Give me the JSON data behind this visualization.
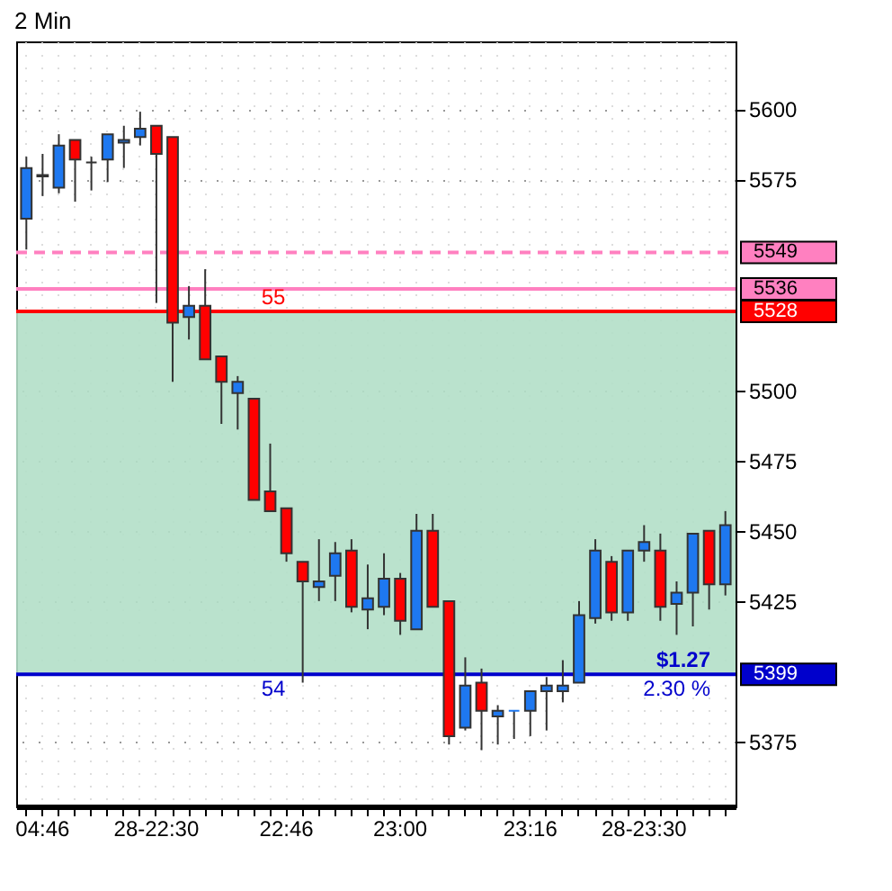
{
  "chart_data": {
    "type": "candlestick",
    "title": "2 Min",
    "categories": [
      null,
      "04:46",
      null,
      null,
      null,
      null,
      null,
      null,
      "28-22:30",
      null,
      null,
      null,
      null,
      null,
      null,
      null,
      "22:46",
      null,
      null,
      null,
      null,
      null,
      null,
      "23:00",
      null,
      null,
      null,
      null,
      null,
      null,
      null,
      "23:16",
      null,
      null,
      null,
      null,
      null,
      null,
      "28-23:30",
      null,
      null,
      null,
      null,
      null
    ],
    "ohlc": [
      [
        5561,
        5583,
        5550,
        5579
      ],
      [
        5576.5,
        5584,
        5569,
        5576
      ],
      [
        5572,
        5591,
        5570,
        5587
      ],
      [
        5589,
        5589,
        5567,
        5582
      ],
      [
        5581,
        5583,
        5571,
        5581
      ],
      [
        5582,
        5591,
        5574,
        5591
      ],
      [
        5588,
        5594,
        5579,
        5589
      ],
      [
        5590,
        5599,
        5587,
        5593
      ],
      [
        5594,
        5594,
        5531,
        5584
      ],
      [
        5590,
        5590,
        5503,
        5524
      ],
      [
        5526,
        5537,
        5518,
        5530
      ],
      [
        5530,
        5543,
        5511,
        5511
      ],
      [
        5512,
        5512,
        5488,
        5503
      ],
      [
        5499,
        5505,
        5486,
        5503
      ],
      [
        5497,
        5497,
        5461,
        5461
      ],
      [
        5464,
        5481,
        5457,
        5457
      ],
      [
        5458,
        5458,
        5439,
        5442
      ],
      [
        5439,
        5439,
        5396,
        5432
      ],
      [
        5430,
        5447,
        5425,
        5432
      ],
      [
        5434,
        5446,
        5425,
        5442
      ],
      [
        5443,
        5447,
        5421,
        5423
      ],
      [
        5422,
        5438,
        5415,
        5426
      ],
      [
        5423,
        5442,
        5420,
        5433
      ],
      [
        5433,
        5435,
        5413,
        5418
      ],
      [
        5415,
        5456,
        5415,
        5450
      ],
      [
        5450,
        5456,
        5423,
        5423
      ],
      [
        5425,
        5425,
        5374,
        5377
      ],
      [
        5380,
        5405,
        5379,
        5395
      ],
      [
        5396,
        5401,
        5372,
        5386
      ],
      [
        5384,
        5388,
        5374,
        5386
      ],
      [
        5386,
        5386,
        5376,
        5386
      ],
      [
        5386,
        5393,
        5377,
        5393
      ],
      [
        5393,
        5398,
        5379,
        5395
      ],
      [
        5393,
        5404,
        5389,
        5395
      ],
      [
        5396,
        5425,
        5396,
        5420
      ],
      [
        5419,
        5447,
        5417,
        5443
      ],
      [
        5439,
        5441,
        5418,
        5421
      ],
      [
        5421,
        5443,
        5418,
        5443
      ],
      [
        5443,
        5452,
        5439,
        5446
      ],
      [
        5443,
        5449,
        5418,
        5423
      ],
      [
        5424,
        5432,
        5413,
        5428
      ],
      [
        5428,
        5449,
        5416,
        5449
      ],
      [
        5450,
        5450,
        5422,
        5431
      ],
      [
        5431,
        5457,
        5427,
        5452
      ]
    ],
    "colors": [
      "#1e78f0",
      "#ff0000",
      "#1e78f0",
      "#ff0000",
      "#333333",
      "#1e78f0",
      "#1e78f0",
      "#1e78f0",
      "#ff0000",
      "#ff0000",
      "#1e78f0",
      "#ff0000",
      "#ff0000",
      "#1e78f0",
      "#ff0000",
      "#ff0000",
      "#ff0000",
      "#ff0000",
      "#1e78f0",
      "#1e78f0",
      "#ff0000",
      "#1e78f0",
      "#1e78f0",
      "#ff0000",
      "#1e78f0",
      "#ff0000",
      "#ff0000",
      "#1e78f0",
      "#ff0000",
      "#1e78f0",
      "#1e78f0",
      "#1e78f0",
      "#1e78f0",
      "#1e78f0",
      "#1e78f0",
      "#1e78f0",
      "#ff0000",
      "#1e78f0",
      "#1e78f0",
      "#ff0000",
      "#1e78f0",
      "#1e78f0",
      "#ff0000",
      "#1e78f0"
    ],
    "ylim": [
      5352,
      5624
    ],
    "yticks": [
      5375,
      5425,
      5450,
      5475,
      5500,
      5575,
      5600
    ],
    "grid": true,
    "bands": [
      {
        "axis": "y",
        "from": 5399,
        "to": 5528,
        "color": "#b2dfc8"
      }
    ],
    "ref_lines": [
      {
        "axis": "y",
        "value": 5549,
        "label": "5549",
        "color": "#ff80c0",
        "line_style": "dashed"
      },
      {
        "axis": "y",
        "value": 5536,
        "label": "5536",
        "color": "#ff80c0",
        "line_style": "solid"
      },
      {
        "axis": "y",
        "value": 5528,
        "label": "5528",
        "color": "#ff0000",
        "line_style": "solid"
      },
      {
        "axis": "y",
        "value": 5399,
        "label": "5399",
        "color": "#0000cc",
        "line_style": "solid"
      }
    ],
    "annotations": [
      {
        "text": "55",
        "y": 5528
      },
      {
        "text": "54",
        "y": 5399
      },
      {
        "text": "$1.27",
        "y": 5399
      },
      "2.30 %"
    ]
  }
}
